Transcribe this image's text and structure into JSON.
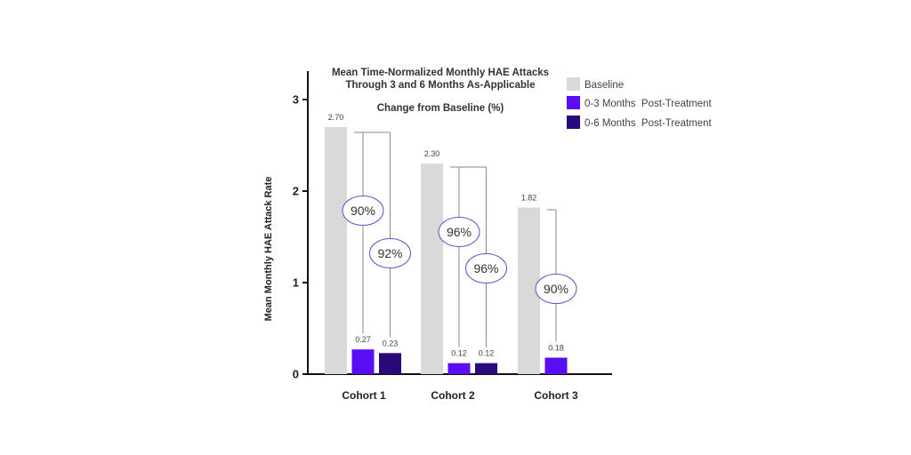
{
  "chart_data": {
    "type": "bar",
    "title": "Mean Time-Normalized Monthly HAE Attacks",
    "subtitle": "Through 3 and 6 Months As-Applicable",
    "annotation_heading": "Change from Baseline (%)",
    "ylabel": "Mean Monthly HAE Attack Rate",
    "xlabel": "",
    "ylim": [
      0,
      3.3
    ],
    "yticks": [
      "0",
      "1",
      "2",
      "3"
    ],
    "grid": false,
    "legend_position": "top-right",
    "categories": [
      "Cohort 1",
      "Cohort 2",
      "Cohort 3"
    ],
    "series": [
      {
        "name": "Baseline",
        "color": "#d9d9d9",
        "values": [
          2.7,
          2.3,
          1.82
        ],
        "labels": [
          "2.70",
          "2.30",
          "1.82"
        ]
      },
      {
        "name": "0-3 Months  Post-Treatment",
        "color": "#5a0cf5",
        "values": [
          0.27,
          0.12,
          0.18
        ],
        "labels": [
          "0.27",
          "0.12",
          "0.18"
        ]
      },
      {
        "name": "0-6 Months  Post-Treatment",
        "color": "#2a0a7a",
        "values": [
          0.23,
          0.12,
          null
        ],
        "labels": [
          "0.23",
          "0.12",
          ""
        ]
      }
    ],
    "reductions": [
      {
        "category": 0,
        "series": 1,
        "label": "90%"
      },
      {
        "category": 0,
        "series": 2,
        "label": "92%"
      },
      {
        "category": 1,
        "series": 1,
        "label": "96%"
      },
      {
        "category": 1,
        "series": 2,
        "label": "96%"
      },
      {
        "category": 2,
        "series": 1,
        "label": "90%"
      }
    ],
    "accent_colors": {
      "ellipse_stroke": "#6b4fc4",
      "connector": "#888888",
      "axis": "#111111"
    }
  }
}
